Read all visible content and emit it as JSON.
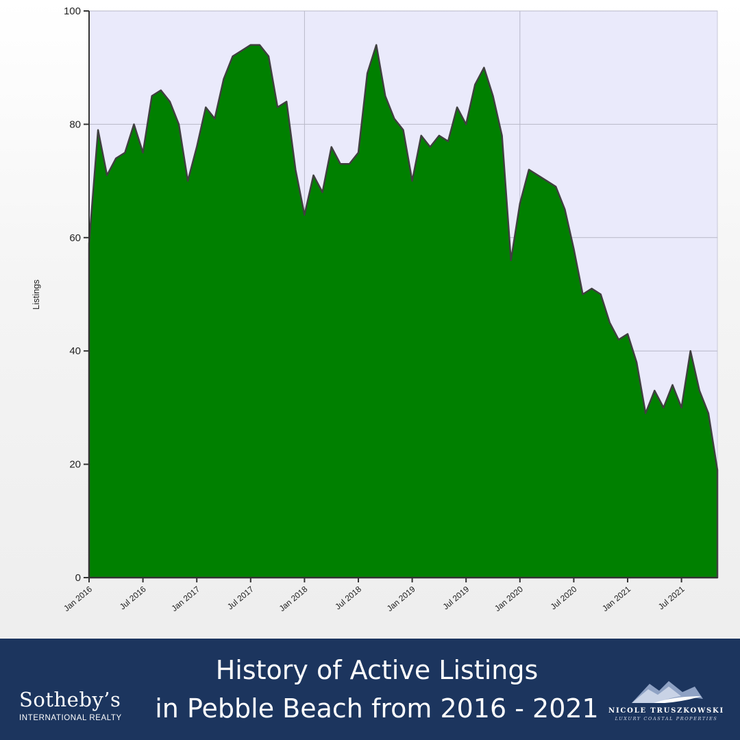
{
  "chart_data": {
    "type": "area",
    "title": "",
    "xlabel": "",
    "ylabel": "Listings",
    "ylim": [
      0,
      100
    ],
    "yticks": [
      0,
      20,
      40,
      60,
      80,
      100
    ],
    "xlim": [
      "2016-01",
      "2021-12"
    ],
    "xticks": [
      "Jan 2016",
      "Jul 2016",
      "Jan 2017",
      "Jul 2017",
      "Jan 2018",
      "Jul 2018",
      "Jan 2019",
      "Jul 2019",
      "Jan 2020",
      "Jul 2020",
      "Jan 2021",
      "Jul 2021"
    ],
    "grid": true,
    "fill_color": "#008000",
    "line_color": "#404040",
    "plot_background": "#eaeafb",
    "series": [
      {
        "values": [
          59,
          79,
          71,
          74,
          75,
          80,
          75,
          85,
          86,
          84,
          80,
          70,
          76,
          83,
          81,
          88,
          92,
          93,
          94,
          94,
          92,
          83,
          84,
          72,
          64,
          71,
          68,
          76,
          73,
          73,
          75,
          89,
          94,
          85,
          81,
          79,
          70,
          78,
          76,
          78,
          77,
          83,
          80,
          87,
          90,
          85,
          78,
          56,
          66,
          72,
          71,
          70,
          69,
          65,
          58,
          50,
          51,
          50,
          45,
          42,
          43,
          38,
          29,
          33,
          30,
          34,
          30,
          40,
          33,
          29,
          19
        ]
      }
    ]
  },
  "footer": {
    "title_line1": "History of Active Listings",
    "title_line2": "in Pebble Beach from 2016 - 2021",
    "brand_name": "Sotheby’s",
    "brand_sub": "INTERNATIONAL REALTY",
    "agent_name": "NICOLE TRUSZKOWSKI",
    "agent_tagline": "LUXURY COASTAL PROPERTIES"
  }
}
